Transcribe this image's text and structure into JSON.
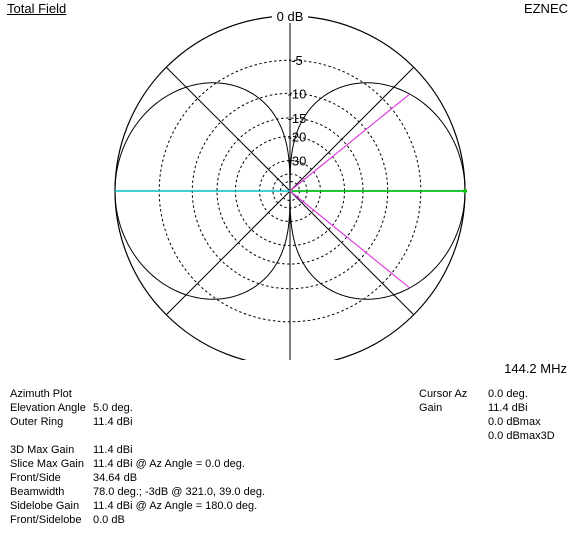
{
  "header": {
    "title": "Total Field",
    "app_name": "EZNEC"
  },
  "frequency": "144.2 MHz",
  "chart_data": {
    "type": "polar",
    "scale": "ARRL log",
    "ring_labels": [
      "0 dB",
      "-5",
      "-10",
      "-15",
      "-20",
      "-30"
    ],
    "ring_levels_db": [
      0,
      -5,
      -10,
      -15,
      -20,
      -30,
      -40,
      -50
    ],
    "radial_angles_deg": [
      0,
      45,
      90,
      135,
      180,
      225,
      270,
      315
    ],
    "pattern_peak_dbi": 11.4,
    "pattern": "figure-eight, max at 0 and 180 deg az, nulls at 90 and 270 deg",
    "cursor_az_deg": 0.0,
    "half_power_azimuths_deg": [
      321.0,
      39.0
    ],
    "colors": {
      "pattern": "#000000",
      "cursor": "#00c000",
      "reference_line": "#00c0c0",
      "beamwidth_lines": "#e040e0",
      "grid": "#000000"
    }
  },
  "info": {
    "plot_type": "Azimuth Plot",
    "left": [
      {
        "label": "Elevation Angle",
        "value": "5.0 deg."
      },
      {
        "label": "Outer Ring",
        "value": "11.4 dBi"
      }
    ],
    "left2": [
      {
        "label": "3D Max Gain",
        "value": "11.4 dBi"
      },
      {
        "label": "Slice Max Gain",
        "value": "11.4 dBi @ Az Angle = 0.0 deg."
      },
      {
        "label": "Front/Side",
        "value": "34.64 dB"
      },
      {
        "label": "Beamwidth",
        "value": "78.0 deg.; -3dB @ 321.0, 39.0 deg."
      },
      {
        "label": "Sidelobe Gain",
        "value": "11.4 dBi @ Az Angle = 180.0 deg."
      },
      {
        "label": "Front/Sidelobe",
        "value": "0.0 dB"
      }
    ],
    "right": [
      {
        "label": "Cursor Az",
        "value": "0.0 deg."
      },
      {
        "label": "Gain",
        "value": "11.4 dBi"
      },
      {
        "label": "",
        "value": "0.0 dBmax"
      },
      {
        "label": "",
        "value": "0.0 dBmax3D"
      }
    ]
  }
}
